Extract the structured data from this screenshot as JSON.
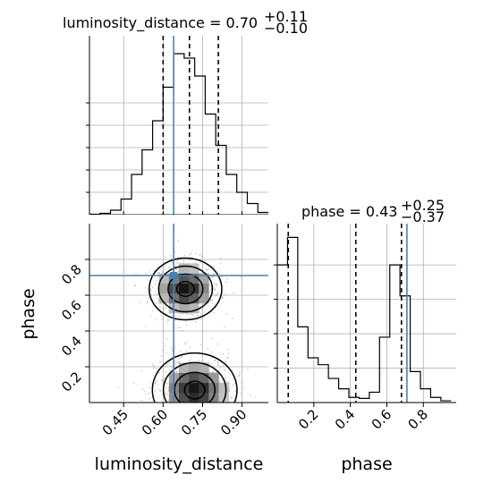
{
  "chart_data": {
    "type": "corner",
    "parameters": [
      "luminosity_distance",
      "phase"
    ],
    "truths": {
      "luminosity_distance": 0.64,
      "phase": 0.71
    },
    "grid": true,
    "panels": [
      {
        "id": "lumdist-marginal",
        "type": "histogram",
        "title": {
          "text": "luminosity_distance = 0.70",
          "sup": "+0.11",
          "sub": "−0.10"
        },
        "xlim": [
          0.32,
          1.0
        ],
        "bin_edges": [
          0.32,
          0.36,
          0.4,
          0.44,
          0.48,
          0.52,
          0.56,
          0.6,
          0.64,
          0.68,
          0.72,
          0.76,
          0.8,
          0.84,
          0.88,
          0.92,
          0.96,
          1.0
        ],
        "counts": [
          0.2,
          0.6,
          2.0,
          7.0,
          18.0,
          29.0,
          42.0,
          57.0,
          72.0,
          70.0,
          62.0,
          45.0,
          31.0,
          18.0,
          10.0,
          5.0,
          1.0
        ],
        "ylim": [
          0,
          80
        ],
        "y_tick_values": [
          10,
          20,
          30,
          40,
          50
        ],
        "quantiles": [
          0.6,
          0.7,
          0.81
        ]
      },
      {
        "id": "phase-marginal",
        "type": "histogram",
        "title": {
          "text": "phase = 0.43",
          "sup": "+0.25",
          "sub": "−0.37"
        },
        "xlim": [
          0.0,
          0.98
        ],
        "bin_edges": [
          0.0,
          0.056,
          0.112,
          0.168,
          0.224,
          0.28,
          0.336,
          0.392,
          0.448,
          0.504,
          0.56,
          0.616,
          0.672,
          0.728,
          0.784,
          0.84,
          0.896,
          0.952
        ],
        "counts": [
          40,
          48,
          22,
          13,
          11,
          7,
          4,
          1.5,
          1.2,
          3,
          19,
          40,
          31,
          9,
          4,
          1.5,
          0.5
        ],
        "ylim": [
          0,
          52
        ],
        "y_tick_values": [
          10,
          20,
          30,
          40
        ],
        "quantiles": [
          0.06,
          0.43,
          0.68
        ]
      },
      {
        "id": "joint",
        "type": "2d-histogram-contour",
        "xlim": [
          0.32,
          1.0
        ],
        "ylim": [
          0.0,
          1.0
        ],
        "clusters": [
          {
            "x": 0.685,
            "y": 0.635,
            "sx": 0.06,
            "sy": 0.075,
            "weight": 1.0
          },
          {
            "x": 0.72,
            "y": 0.07,
            "sx": 0.07,
            "sy": 0.09,
            "weight": 1.0
          }
        ]
      }
    ],
    "axes": {
      "x_tick_labels_luminosity_distance": [
        "0.45",
        "0.60",
        "0.75",
        "0.90"
      ],
      "x_tick_values_luminosity_distance": [
        0.45,
        0.6,
        0.75,
        0.9
      ],
      "x_tick_labels_phase": [
        "0.2",
        "0.4",
        "0.6",
        "0.8"
      ],
      "x_tick_values_phase": [
        0.2,
        0.4,
        0.6,
        0.8
      ],
      "y_tick_labels_phase": [
        "0.2",
        "0.4",
        "0.6",
        "0.8"
      ],
      "y_tick_values_phase": [
        0.2,
        0.4,
        0.6,
        0.8
      ],
      "xlabel_left": "luminosity_distance",
      "xlabel_right": "phase",
      "ylabel": "phase"
    },
    "colors": {
      "truth": "#4682b4",
      "hist": "#000000",
      "grid": "#b0b0b0",
      "quantile": "#000000"
    }
  }
}
